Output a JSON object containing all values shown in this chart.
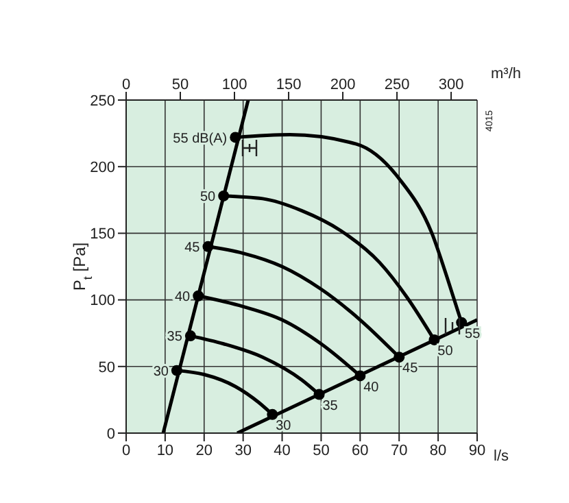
{
  "chart_data": {
    "type": "line",
    "xlabel": "l/s",
    "x2label": "m³/h",
    "ylabel": "P$_{t}$ [Pa]",
    "xlim": [
      0,
      90
    ],
    "xticks": [
      0,
      10,
      20,
      30,
      40,
      50,
      60,
      70,
      80,
      90
    ],
    "x2lim": [
      0,
      324
    ],
    "x2ticks": [
      0,
      50,
      100,
      150,
      200,
      250,
      300
    ],
    "ylim": [
      0,
      250
    ],
    "yticks": [
      0,
      50,
      100,
      150,
      200,
      250
    ],
    "grid": true,
    "marker": "none",
    "series": [
      {
        "color": "#000000",
        "x": [
          9.5,
          31.3
        ],
        "values": [
          0,
          250
        ]
      },
      {
        "color": "#000000",
        "x": [
          28.5,
          90
        ],
        "values": [
          0,
          85
        ]
      },
      {
        "color": "#000000",
        "x": [
          13,
          20,
          28,
          34,
          37.5
        ],
        "values": [
          47,
          44,
          35,
          23,
          14
        ]
      },
      {
        "color": "#000000",
        "x": [
          16.5,
          25,
          35,
          45,
          49.5
        ],
        "values": [
          73,
          67,
          57,
          40,
          29
        ]
      },
      {
        "color": "#000000",
        "x": [
          18.5,
          30,
          40,
          50,
          60
        ],
        "values": [
          103,
          95,
          85,
          67,
          43
        ]
      },
      {
        "color": "#000000",
        "x": [
          21,
          30,
          40,
          50,
          60,
          70
        ],
        "values": [
          140,
          135,
          125,
          108,
          85,
          57
        ]
      },
      {
        "color": "#000000",
        "x": [
          25,
          35,
          45,
          55,
          65,
          72,
          79
        ],
        "values": [
          178,
          176,
          167,
          152,
          128,
          102,
          70
        ]
      },
      {
        "color": "#000000",
        "x": [
          28,
          42,
          59,
          70,
          78.4,
          82.5,
          86
        ],
        "values": [
          222,
          224,
          217,
          191,
          150,
          115,
          83
        ]
      },
      {
        "type": "scatter",
        "marker": "circle",
        "color": "#000000",
        "x": [
          13,
          16.5,
          18.5,
          21,
          25,
          28,
          37.5,
          49.5,
          60,
          70,
          79,
          86
        ],
        "values": [
          47,
          73,
          103,
          140,
          178,
          222,
          14,
          29,
          43,
          57,
          70,
          83
        ]
      }
    ],
    "annotations": [
      {
        "text": "30",
        "x": 13,
        "y": 47
      },
      {
        "text": "35",
        "x": 16.5,
        "y": 73
      },
      {
        "text": "40",
        "x": 18.5,
        "y": 103
      },
      {
        "text": "45",
        "x": 21,
        "y": 140
      },
      {
        "text": "50",
        "x": 25,
        "y": 178
      },
      {
        "text": "55 dB(A)",
        "x": 28,
        "y": 222
      },
      {
        "text": "30",
        "x": 37.5,
        "y": 14
      },
      {
        "text": "35",
        "x": 49.5,
        "y": 29
      },
      {
        "text": "40",
        "x": 60,
        "y": 43
      },
      {
        "text": "45",
        "x": 70,
        "y": 57
      },
      {
        "text": "50",
        "x": 79,
        "y": 70
      },
      {
        "text": "55",
        "x": 86,
        "y": 83
      },
      "4015"
    ]
  }
}
